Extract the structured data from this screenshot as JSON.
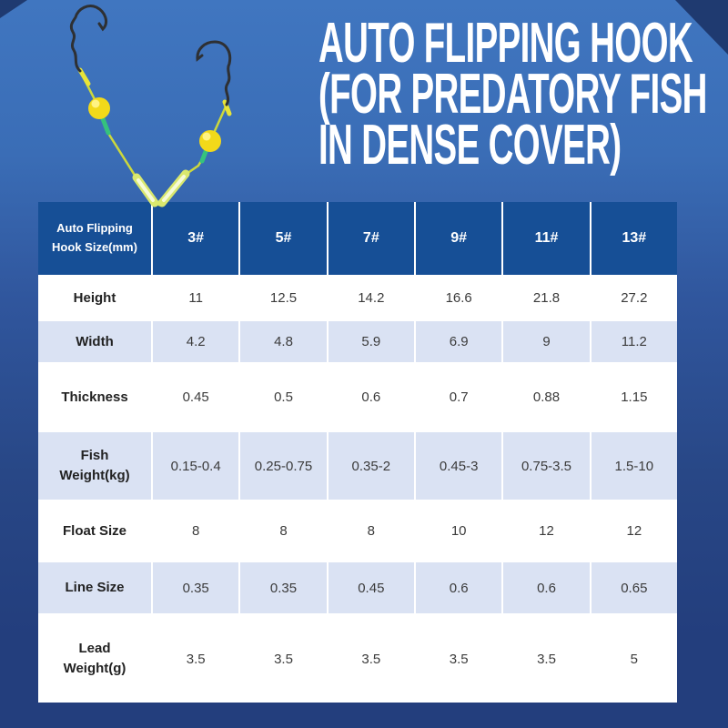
{
  "page": {
    "background_top": "#4076C0",
    "background_bottom": "#233E7D",
    "corner_accent": "#1F3A70"
  },
  "title": {
    "lines": [
      "AUTO FLIPPING HOOK",
      "(FOR PREDATORY FISH",
      "IN DENSE COVER)"
    ],
    "color": "#FFFFFF"
  },
  "product_image": {
    "description": "V-shaped auto flipping hook rig with two hooks, yellow float balls and glow sticks",
    "colors": {
      "hook_wire": "#2E3033",
      "line_yellow_green": "#CCD83D",
      "segment_yellow": "#E8E438",
      "segment_green": "#35C27D",
      "glow_outer": "#D9E86E",
      "glow_inner": "#F6FBD8",
      "ball_fill": "#F2D91A",
      "ball_edge": "#C9A60E",
      "ball_highlight": "#FFF383"
    }
  },
  "table": {
    "corner_label": "Auto Flipping Hook Size(mm)",
    "size_columns": [
      "3#",
      "5#",
      "7#",
      "9#",
      "11#",
      "13#"
    ],
    "rows": [
      {
        "label": "Height",
        "values": [
          "11",
          "12.5",
          "14.2",
          "16.6",
          "21.8",
          "27.2"
        ]
      },
      {
        "label": "Width",
        "values": [
          "4.2",
          "4.8",
          "5.9",
          "6.9",
          "9",
          "11.2"
        ]
      },
      {
        "label": "Thickness",
        "values": [
          "0.45",
          "0.5",
          "0.6",
          "0.7",
          "0.88",
          "1.15"
        ]
      },
      {
        "label": "Fish Weight(kg)",
        "values": [
          "0.15-0.4",
          "0.25-0.75",
          "0.35-2",
          "0.45-3",
          "0.75-3.5",
          "1.5-10"
        ]
      },
      {
        "label": "Float Size",
        "values": [
          "8",
          "8",
          "8",
          "10",
          "12",
          "12"
        ]
      },
      {
        "label": "Line Size",
        "values": [
          "0.35",
          "0.35",
          "0.45",
          "0.6",
          "0.6",
          "0.65"
        ]
      },
      {
        "label": "Lead Weight(g)",
        "values": [
          "3.5",
          "3.5",
          "3.5",
          "3.5",
          "3.5",
          "5"
        ]
      }
    ],
    "colors": {
      "header_bg": "#164F96",
      "header_text": "#FFFFFF",
      "row_white": "#FFFFFF",
      "row_alt": "#DAE2F3",
      "body_text": "#3B3B3B"
    }
  }
}
